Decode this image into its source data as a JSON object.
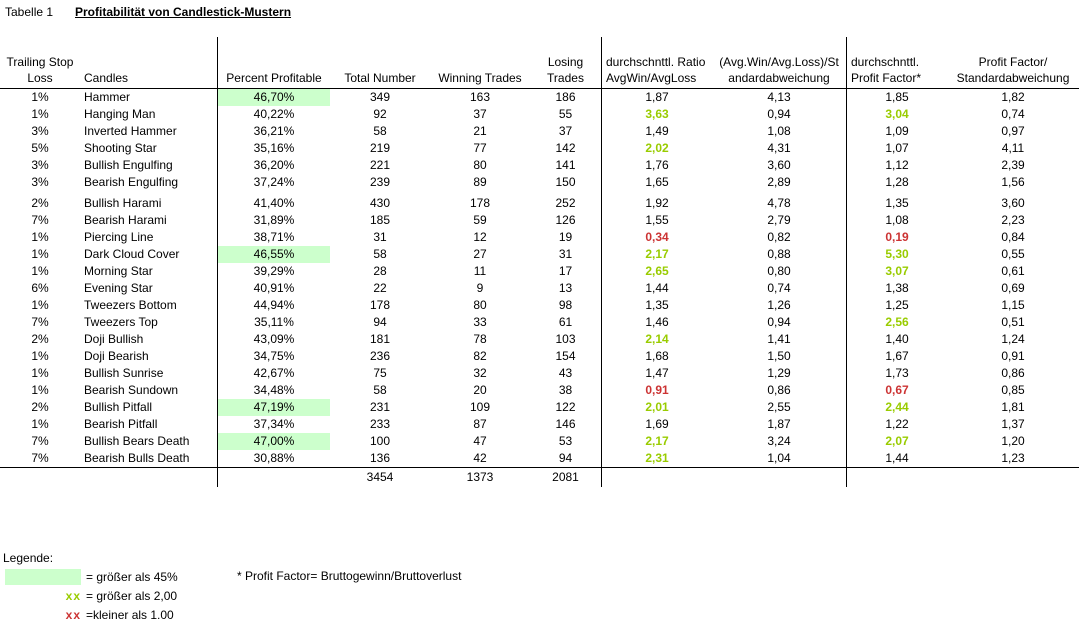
{
  "page": {
    "tab_label": "Tabelle 1",
    "title": "Profitabilität von Candlestick-Mustern"
  },
  "colors": {
    "highlight_green": "#ccffcc",
    "good_green": "#99cc00",
    "bad_red": "#cc3333"
  },
  "table": {
    "columns": {
      "tsl": "Trailing Stop\nLoss",
      "candles": "Candles",
      "pct": "Percent Profitable",
      "total": "Total Number",
      "winning": "Winning Trades",
      "losing": "Losing Trades",
      "ratio": "durchschnttl. Ratio\nAvgWin/AvgLoss",
      "ratio_sd": "(Avg.Win/Avg.Loss)/St\nandardabweichung",
      "pf": "durchschnttl.\nProfit Factor*",
      "pf_sd": "Profit Factor/\nStandardabweichung"
    },
    "rows": [
      {
        "tsl": "1%",
        "candle": "Hammer",
        "pct": "46,70%",
        "pct_hl": true,
        "total": "349",
        "winning": "163",
        "losing": "186",
        "ratio": "1,87",
        "ratio_style": "",
        "ratio_sd": "4,13",
        "pf": "1,85",
        "pf_style": "",
        "pf_sd": "1,82"
      },
      {
        "tsl": "1%",
        "candle": "Hanging Man",
        "pct": "40,22%",
        "pct_hl": false,
        "total": "92",
        "winning": "37",
        "losing": "55",
        "ratio": "3,63",
        "ratio_style": "good",
        "ratio_sd": "0,94",
        "pf": "3,04",
        "pf_style": "good",
        "pf_sd": "0,74"
      },
      {
        "tsl": "3%",
        "candle": "Inverted Hammer",
        "pct": "36,21%",
        "pct_hl": false,
        "total": "58",
        "winning": "21",
        "losing": "37",
        "ratio": "1,49",
        "ratio_style": "",
        "ratio_sd": "1,08",
        "pf": "1,09",
        "pf_style": "",
        "pf_sd": "0,97"
      },
      {
        "tsl": "5%",
        "candle": "Shooting Star",
        "pct": "35,16%",
        "pct_hl": false,
        "total": "219",
        "winning": "77",
        "losing": "142",
        "ratio": "2,02",
        "ratio_style": "good",
        "ratio_sd": "4,31",
        "pf": "1,07",
        "pf_style": "",
        "pf_sd": "4,11"
      },
      {
        "tsl": "3%",
        "candle": "Bullish Engulfing",
        "pct": "36,20%",
        "pct_hl": false,
        "total": "221",
        "winning": "80",
        "losing": "141",
        "ratio": "1,76",
        "ratio_style": "",
        "ratio_sd": "3,60",
        "pf": "1,12",
        "pf_style": "",
        "pf_sd": "2,39"
      },
      {
        "tsl": "3%",
        "candle": "Bearish Engulfing",
        "pct": "37,24%",
        "pct_hl": false,
        "total": "239",
        "winning": "89",
        "losing": "150",
        "ratio": "1,65",
        "ratio_style": "",
        "ratio_sd": "2,89",
        "pf": "1,28",
        "pf_style": "",
        "pf_sd": "1,56"
      },
      {
        "tsl": "2%",
        "candle": "Bullish Harami",
        "pct": "41,40%",
        "pct_hl": false,
        "total": "430",
        "winning": "178",
        "losing": "252",
        "ratio": "1,92",
        "ratio_style": "",
        "ratio_sd": "4,78",
        "pf": "1,35",
        "pf_style": "",
        "pf_sd": "3,60"
      },
      {
        "tsl": "7%",
        "candle": "Bearish Harami",
        "pct": "31,89%",
        "pct_hl": false,
        "total": "185",
        "winning": "59",
        "losing": "126",
        "ratio": "1,55",
        "ratio_style": "",
        "ratio_sd": "2,79",
        "pf": "1,08",
        "pf_style": "",
        "pf_sd": "2,23"
      },
      {
        "tsl": "1%",
        "candle": "Piercing Line",
        "pct": "38,71%",
        "pct_hl": false,
        "total": "31",
        "winning": "12",
        "losing": "19",
        "ratio": "0,34",
        "ratio_style": "bad",
        "ratio_sd": "0,82",
        "pf": "0,19",
        "pf_style": "bad",
        "pf_sd": "0,84"
      },
      {
        "tsl": "1%",
        "candle": "Dark Cloud Cover",
        "pct": "46,55%",
        "pct_hl": true,
        "total": "58",
        "winning": "27",
        "losing": "31",
        "ratio": "2,17",
        "ratio_style": "good",
        "ratio_sd": "0,88",
        "pf": "5,30",
        "pf_style": "good",
        "pf_sd": "0,55"
      },
      {
        "tsl": "1%",
        "candle": "Morning Star",
        "pct": "39,29%",
        "pct_hl": false,
        "total": "28",
        "winning": "11",
        "losing": "17",
        "ratio": "2,65",
        "ratio_style": "good",
        "ratio_sd": "0,80",
        "pf": "3,07",
        "pf_style": "good",
        "pf_sd": "0,61"
      },
      {
        "tsl": "6%",
        "candle": "Evening Star",
        "pct": "40,91%",
        "pct_hl": false,
        "total": "22",
        "winning": "9",
        "losing": "13",
        "ratio": "1,44",
        "ratio_style": "",
        "ratio_sd": "0,74",
        "pf": "1,38",
        "pf_style": "",
        "pf_sd": "0,69"
      },
      {
        "tsl": "1%",
        "candle": "Tweezers Bottom",
        "pct": "44,94%",
        "pct_hl": false,
        "total": "178",
        "winning": "80",
        "losing": "98",
        "ratio": "1,35",
        "ratio_style": "",
        "ratio_sd": "1,26",
        "pf": "1,25",
        "pf_style": "",
        "pf_sd": "1,15"
      },
      {
        "tsl": "7%",
        "candle": "Tweezers Top",
        "pct": "35,11%",
        "pct_hl": false,
        "total": "94",
        "winning": "33",
        "losing": "61",
        "ratio": "1,46",
        "ratio_style": "",
        "ratio_sd": "0,94",
        "pf": "2,56",
        "pf_style": "good",
        "pf_sd": "0,51"
      },
      {
        "tsl": "2%",
        "candle": "Doji Bullish",
        "pct": "43,09%",
        "pct_hl": false,
        "total": "181",
        "winning": "78",
        "losing": "103",
        "ratio": "2,14",
        "ratio_style": "good",
        "ratio_sd": "1,41",
        "pf": "1,40",
        "pf_style": "",
        "pf_sd": "1,24"
      },
      {
        "tsl": "1%",
        "candle": "Doji Bearish",
        "pct": "34,75%",
        "pct_hl": false,
        "total": "236",
        "winning": "82",
        "losing": "154",
        "ratio": "1,68",
        "ratio_style": "",
        "ratio_sd": "1,50",
        "pf": "1,67",
        "pf_style": "",
        "pf_sd": "0,91"
      },
      {
        "tsl": "1%",
        "candle": "Bullish Sunrise",
        "pct": "42,67%",
        "pct_hl": false,
        "total": "75",
        "winning": "32",
        "losing": "43",
        "ratio": "1,47",
        "ratio_style": "",
        "ratio_sd": "1,29",
        "pf": "1,73",
        "pf_style": "",
        "pf_sd": "0,86"
      },
      {
        "tsl": "1%",
        "candle": "Bearish Sundown",
        "pct": "34,48%",
        "pct_hl": false,
        "total": "58",
        "winning": "20",
        "losing": "38",
        "ratio": "0,91",
        "ratio_style": "bad",
        "ratio_sd": "0,86",
        "pf": "0,67",
        "pf_style": "bad",
        "pf_sd": "0,85"
      },
      {
        "tsl": "2%",
        "candle": "Bullish Pitfall",
        "pct": "47,19%",
        "pct_hl": true,
        "total": "231",
        "winning": "109",
        "losing": "122",
        "ratio": "2,01",
        "ratio_style": "good",
        "ratio_sd": "2,55",
        "pf": "2,44",
        "pf_style": "good",
        "pf_sd": "1,81"
      },
      {
        "tsl": "1%",
        "candle": "Bearish Pitfall",
        "pct": "37,34%",
        "pct_hl": false,
        "total": "233",
        "winning": "87",
        "losing": "146",
        "ratio": "1,69",
        "ratio_style": "",
        "ratio_sd": "1,87",
        "pf": "1,22",
        "pf_style": "",
        "pf_sd": "1,37"
      },
      {
        "tsl": "7%",
        "candle": "Bullish Bears Death",
        "pct": "47,00%",
        "pct_hl": true,
        "total": "100",
        "winning": "47",
        "losing": "53",
        "ratio": "2,17",
        "ratio_style": "good",
        "ratio_sd": "3,24",
        "pf": "2,07",
        "pf_style": "good",
        "pf_sd": "1,20"
      },
      {
        "tsl": "7%",
        "candle": "Bearish Bulls Death",
        "pct": "30,88%",
        "pct_hl": false,
        "total": "136",
        "winning": "42",
        "losing": "94",
        "ratio": "2,31",
        "ratio_style": "good",
        "ratio_sd": "1,04",
        "pf": "1,44",
        "pf_style": "",
        "pf_sd": "1,23"
      }
    ],
    "totals": {
      "total": "3454",
      "winning": "1373",
      "losing": "2081"
    }
  },
  "legend": {
    "title": "Legende:",
    "items": [
      {
        "marker": "",
        "label": "= größer als 45%"
      },
      {
        "marker": "xx",
        "label": "= größer als 2,00"
      },
      {
        "marker": "xx",
        "label": "=kleiner als 1,00"
      }
    ],
    "note": "* Profit Factor= Bruttogewinn/Bruttoverlust"
  }
}
